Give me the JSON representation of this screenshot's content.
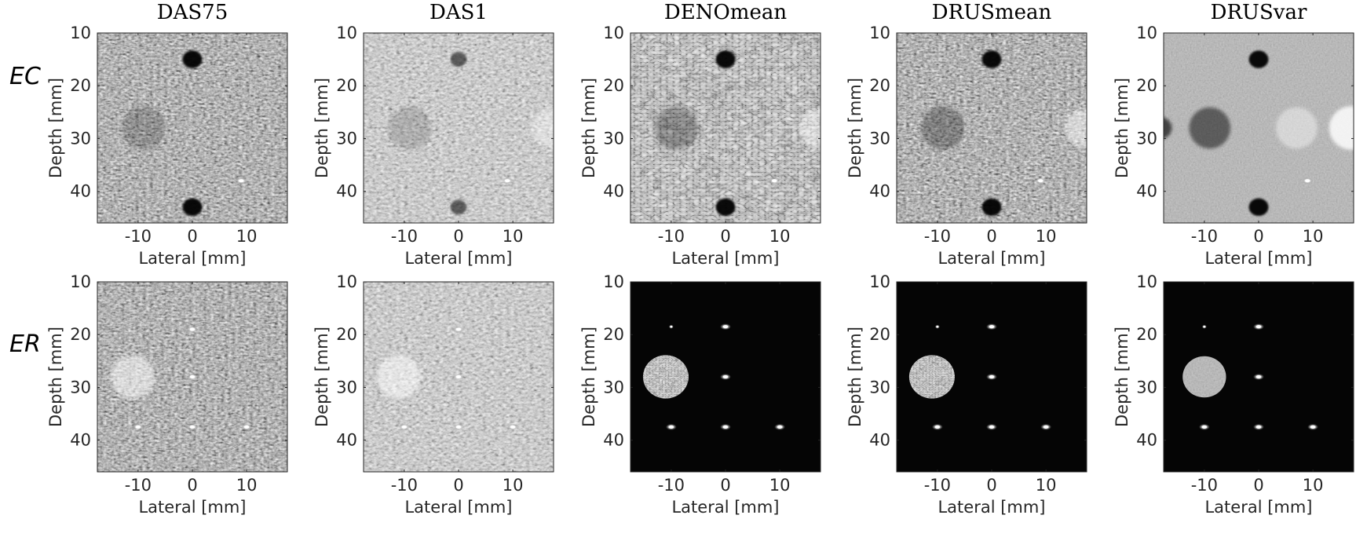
{
  "columns": [
    "DAS75",
    "DAS1",
    "DENOmean",
    "DRUSmean",
    "DRUSvar"
  ],
  "rows": [
    "EC",
    "ER"
  ],
  "x_ticks": [
    "-10",
    "0",
    "10"
  ],
  "y_ticks": [
    "10",
    "20",
    "30",
    "40"
  ],
  "x_label": "Lateral [mm]",
  "y_label": "Depth [mm]",
  "x_range_mm": [
    -17.5,
    17.5
  ],
  "y_range_mm": [
    10,
    46
  ],
  "panels": {
    "EC": [
      {
        "background": "speckle",
        "targets": [
          {
            "kind": "anechoic",
            "x_mm": 0,
            "depth_mm": 15,
            "r_mm": 1.8
          },
          {
            "kind": "anechoic",
            "x_mm": 0,
            "depth_mm": 43,
            "r_mm": 1.8
          },
          {
            "kind": "lesion",
            "x_mm": -9,
            "depth_mm": 28,
            "r_mm": 4,
            "level": 0.8
          },
          {
            "kind": "point",
            "x_mm": 9,
            "depth_mm": 38
          }
        ]
      },
      {
        "background": "speckle-bright",
        "targets": [
          {
            "kind": "anechoic",
            "x_mm": 0,
            "depth_mm": 15,
            "r_mm": 1.5,
            "level": 0.55
          },
          {
            "kind": "anechoic",
            "x_mm": 0,
            "depth_mm": 43,
            "r_mm": 1.5,
            "level": 0.55
          },
          {
            "kind": "lesion",
            "x_mm": -9,
            "depth_mm": 28,
            "r_mm": 4,
            "level": 0.85
          },
          {
            "kind": "lesion",
            "x_mm": 17,
            "depth_mm": 28,
            "r_mm": 3.5,
            "level": 1.2
          },
          {
            "kind": "point",
            "x_mm": 9,
            "depth_mm": 38
          }
        ]
      },
      {
        "background": "speckle-dark-lines",
        "targets": [
          {
            "kind": "anechoic",
            "x_mm": 0,
            "depth_mm": 15,
            "r_mm": 1.8
          },
          {
            "kind": "anechoic",
            "x_mm": 0,
            "depth_mm": 43,
            "r_mm": 1.8
          },
          {
            "kind": "lesion",
            "x_mm": -9,
            "depth_mm": 28,
            "r_mm": 4,
            "level": 0.7
          },
          {
            "kind": "lesion",
            "x_mm": 17,
            "depth_mm": 28,
            "r_mm": 3.5,
            "level": 1.25
          },
          {
            "kind": "point",
            "x_mm": 9,
            "depth_mm": 38
          }
        ]
      },
      {
        "background": "speckle",
        "targets": [
          {
            "kind": "anechoic",
            "x_mm": 0,
            "depth_mm": 15,
            "r_mm": 1.8
          },
          {
            "kind": "anechoic",
            "x_mm": 0,
            "depth_mm": 43,
            "r_mm": 1.8
          },
          {
            "kind": "lesion",
            "x_mm": -9,
            "depth_mm": 28,
            "r_mm": 4,
            "level": 0.7
          },
          {
            "kind": "lesion",
            "x_mm": 17,
            "depth_mm": 28,
            "r_mm": 3.5,
            "level": 1.3
          },
          {
            "kind": "point",
            "x_mm": 9,
            "depth_mm": 38
          }
        ]
      },
      {
        "background": "smooth-gray",
        "targets": [
          {
            "kind": "anechoic",
            "x_mm": 0,
            "depth_mm": 15,
            "r_mm": 1.8
          },
          {
            "kind": "anechoic",
            "x_mm": 0,
            "depth_mm": 43,
            "r_mm": 1.8
          },
          {
            "kind": "lesion",
            "x_mm": -9,
            "depth_mm": 28,
            "r_mm": 3.8,
            "level": 0.45
          },
          {
            "kind": "lesion",
            "x_mm": 7,
            "depth_mm": 28,
            "r_mm": 3.8,
            "level": 1.25
          },
          {
            "kind": "lesion",
            "x_mm": 17,
            "depth_mm": 28,
            "r_mm": 4,
            "level": 1.7
          },
          {
            "kind": "lesion",
            "x_mm": -18,
            "depth_mm": 28,
            "r_mm": 2,
            "level": 0.3
          },
          {
            "kind": "point",
            "x_mm": 9,
            "depth_mm": 38
          }
        ]
      }
    ],
    "ER": [
      {
        "background": "speckle",
        "targets": [
          {
            "kind": "lesion",
            "x_mm": -11,
            "depth_mm": 28,
            "r_mm": 4,
            "level": 1.35
          },
          {
            "kind": "point",
            "x_mm": 0,
            "depth_mm": 19
          },
          {
            "kind": "point",
            "x_mm": 0,
            "depth_mm": 28
          },
          {
            "kind": "point",
            "x_mm": -10,
            "depth_mm": 37.5
          },
          {
            "kind": "point",
            "x_mm": 0,
            "depth_mm": 37.5
          },
          {
            "kind": "point",
            "x_mm": 10,
            "depth_mm": 37.5
          }
        ]
      },
      {
        "background": "speckle-bright",
        "targets": [
          {
            "kind": "lesion",
            "x_mm": -11,
            "depth_mm": 28,
            "r_mm": 4,
            "level": 1.35
          },
          {
            "kind": "point",
            "x_mm": 0,
            "depth_mm": 19
          },
          {
            "kind": "point",
            "x_mm": 0,
            "depth_mm": 28
          },
          {
            "kind": "point",
            "x_mm": -10,
            "depth_mm": 37.5
          },
          {
            "kind": "point",
            "x_mm": 0,
            "depth_mm": 37.5
          },
          {
            "kind": "point",
            "x_mm": 10,
            "depth_mm": 37.5
          }
        ]
      },
      {
        "background": "black",
        "targets": [
          {
            "kind": "lesion-speckle",
            "x_mm": -11,
            "depth_mm": 28,
            "r_mm": 4.2
          },
          {
            "kind": "point",
            "x_mm": -10,
            "depth_mm": 18.5,
            "small": true
          },
          {
            "kind": "point",
            "x_mm": 0,
            "depth_mm": 18.5
          },
          {
            "kind": "point",
            "x_mm": 0,
            "depth_mm": 28
          },
          {
            "kind": "point",
            "x_mm": -10,
            "depth_mm": 37.5
          },
          {
            "kind": "point",
            "x_mm": 0,
            "depth_mm": 37.5
          },
          {
            "kind": "point",
            "x_mm": 10,
            "depth_mm": 37.5
          }
        ]
      },
      {
        "background": "black",
        "targets": [
          {
            "kind": "lesion-speckle",
            "x_mm": -11,
            "depth_mm": 28,
            "r_mm": 4.2
          },
          {
            "kind": "point",
            "x_mm": -10,
            "depth_mm": 18.5,
            "small": true
          },
          {
            "kind": "point",
            "x_mm": 0,
            "depth_mm": 18.5
          },
          {
            "kind": "point",
            "x_mm": 0,
            "depth_mm": 28
          },
          {
            "kind": "point",
            "x_mm": -10,
            "depth_mm": 37.5
          },
          {
            "kind": "point",
            "x_mm": 0,
            "depth_mm": 37.5
          },
          {
            "kind": "point",
            "x_mm": 10,
            "depth_mm": 37.5
          }
        ]
      },
      {
        "background": "black",
        "targets": [
          {
            "kind": "lesion-smooth",
            "x_mm": -10,
            "depth_mm": 28,
            "r_mm": 4
          },
          {
            "kind": "point",
            "x_mm": -10,
            "depth_mm": 18.5,
            "small": true
          },
          {
            "kind": "point",
            "x_mm": 0,
            "depth_mm": 18.5
          },
          {
            "kind": "point",
            "x_mm": 0,
            "depth_mm": 28
          },
          {
            "kind": "point",
            "x_mm": -10,
            "depth_mm": 37.5
          },
          {
            "kind": "point",
            "x_mm": 0,
            "depth_mm": 37.5
          },
          {
            "kind": "point",
            "x_mm": 10,
            "depth_mm": 37.5
          }
        ]
      }
    ]
  }
}
